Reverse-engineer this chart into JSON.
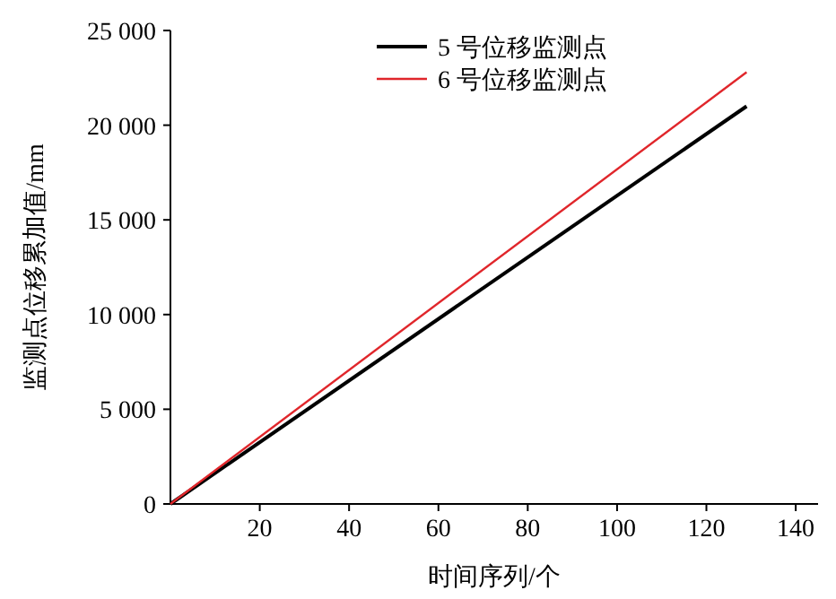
{
  "chart_data": {
    "type": "line",
    "xlabel": "时间序列/个",
    "ylabel": "监测点位移累加值/mm",
    "xlim": [
      0,
      145
    ],
    "xticks": [
      20,
      40,
      60,
      80,
      100,
      120,
      140
    ],
    "ylim": [
      0,
      25000
    ],
    "yticks": [
      0,
      {
        "value": 5000,
        "label": "5 000"
      },
      {
        "value": 10000,
        "label": "10 000"
      },
      {
        "value": 15000,
        "label": "15 000"
      },
      {
        "value": 20000,
        "label": "20 000"
      },
      {
        "value": 25000,
        "label": "25 000"
      }
    ],
    "legend": "top",
    "x": [
      0,
      129
    ],
    "grid": false,
    "marker": "none",
    "line_style": "solid",
    "series": [
      {
        "name": "5 号位移监测点",
        "color": "#000000",
        "values": [
          0,
          21000
        ]
      },
      {
        "name": "6 号位移监测点",
        "color": "#e0262b",
        "values": [
          0,
          22800
        ]
      }
    ]
  }
}
